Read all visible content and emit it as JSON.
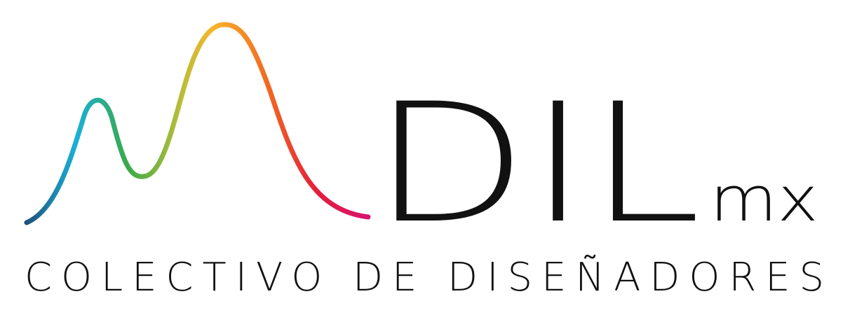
{
  "logo": {
    "name": "DIL",
    "suffix": "mx",
    "tagline": "COLECTIVO DE DISEÑADORES"
  }
}
